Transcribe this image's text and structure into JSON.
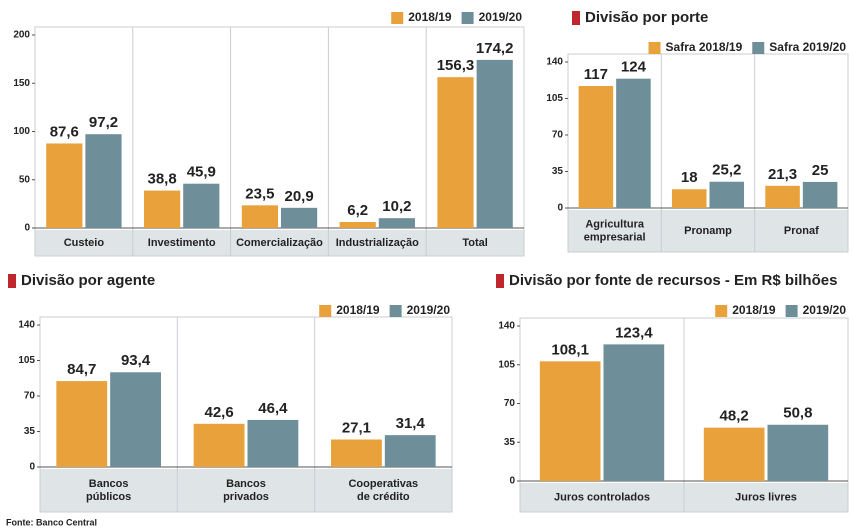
{
  "chart_data": [
    {
      "type": "bar",
      "categories": [
        "Custeio",
        "Investimento",
        "Comercialização",
        "Industrialização",
        "Total"
      ],
      "series": [
        {
          "name": "2018/19",
          "color": "#e9a23b",
          "values": [
            87.6,
            38.8,
            23.5,
            6.2,
            156.3
          ],
          "value_labels": [
            "87,6",
            "38,8",
            "23,5",
            "6,2",
            "156,3"
          ]
        },
        {
          "name": "2019/20",
          "color": "#6e8e99",
          "values": [
            97.2,
            45.9,
            20.9,
            10.2,
            174.2
          ],
          "value_labels": [
            "97,2",
            "45,9",
            "20,9",
            "10,2",
            "174,2"
          ]
        }
      ],
      "ylim": [
        0,
        200
      ],
      "yticks": [
        0,
        50,
        100,
        150,
        200
      ]
    },
    {
      "type": "bar",
      "title": "Divisão por porte",
      "categories": [
        "Agricultura\nempresarial",
        "Pronamp",
        "Pronaf"
      ],
      "series": [
        {
          "name": "Safra 2018/19",
          "color": "#e9a23b",
          "values": [
            117,
            18,
            21.3
          ],
          "value_labels": [
            "117",
            "18",
            "21,3"
          ]
        },
        {
          "name": "Safra 2019/20",
          "color": "#6e8e99",
          "values": [
            124,
            25.2,
            25
          ],
          "value_labels": [
            "124",
            "25,2",
            "25"
          ]
        }
      ],
      "ylim": [
        0,
        140
      ],
      "yticks": [
        0,
        35,
        70,
        105,
        140
      ]
    },
    {
      "type": "bar",
      "title": "Divisão por agente",
      "categories": [
        "Bancos\npúblicos",
        "Bancos\nprivados",
        "Cooperativas\nde crédito"
      ],
      "series": [
        {
          "name": "2018/19",
          "color": "#e9a23b",
          "values": [
            84.7,
            42.6,
            27.1
          ],
          "value_labels": [
            "84,7",
            "42,6",
            "27,1"
          ]
        },
        {
          "name": "2019/20",
          "color": "#6e8e99",
          "values": [
            93.4,
            46.4,
            31.4
          ],
          "value_labels": [
            "93,4",
            "46,4",
            "31,4"
          ]
        }
      ],
      "ylim": [
        0,
        140
      ],
      "yticks": [
        0,
        35,
        70,
        105,
        140
      ]
    },
    {
      "type": "bar",
      "title": "Divisão por fonte de recursos - Em R$ bilhões",
      "categories": [
        "Juros controlados",
        "Juros livres"
      ],
      "series": [
        {
          "name": "2018/19",
          "color": "#e9a23b",
          "values": [
            108.1,
            48.2
          ],
          "value_labels": [
            "108,1",
            "48,2"
          ]
        },
        {
          "name": "2019/20",
          "color": "#6e8e99",
          "values": [
            123.4,
            50.8
          ],
          "value_labels": [
            "123,4",
            "50,8"
          ]
        }
      ],
      "ylim": [
        0,
        140
      ],
      "yticks": [
        0,
        35,
        70,
        105,
        140
      ]
    }
  ],
  "source": "Fonte: Banco Central"
}
